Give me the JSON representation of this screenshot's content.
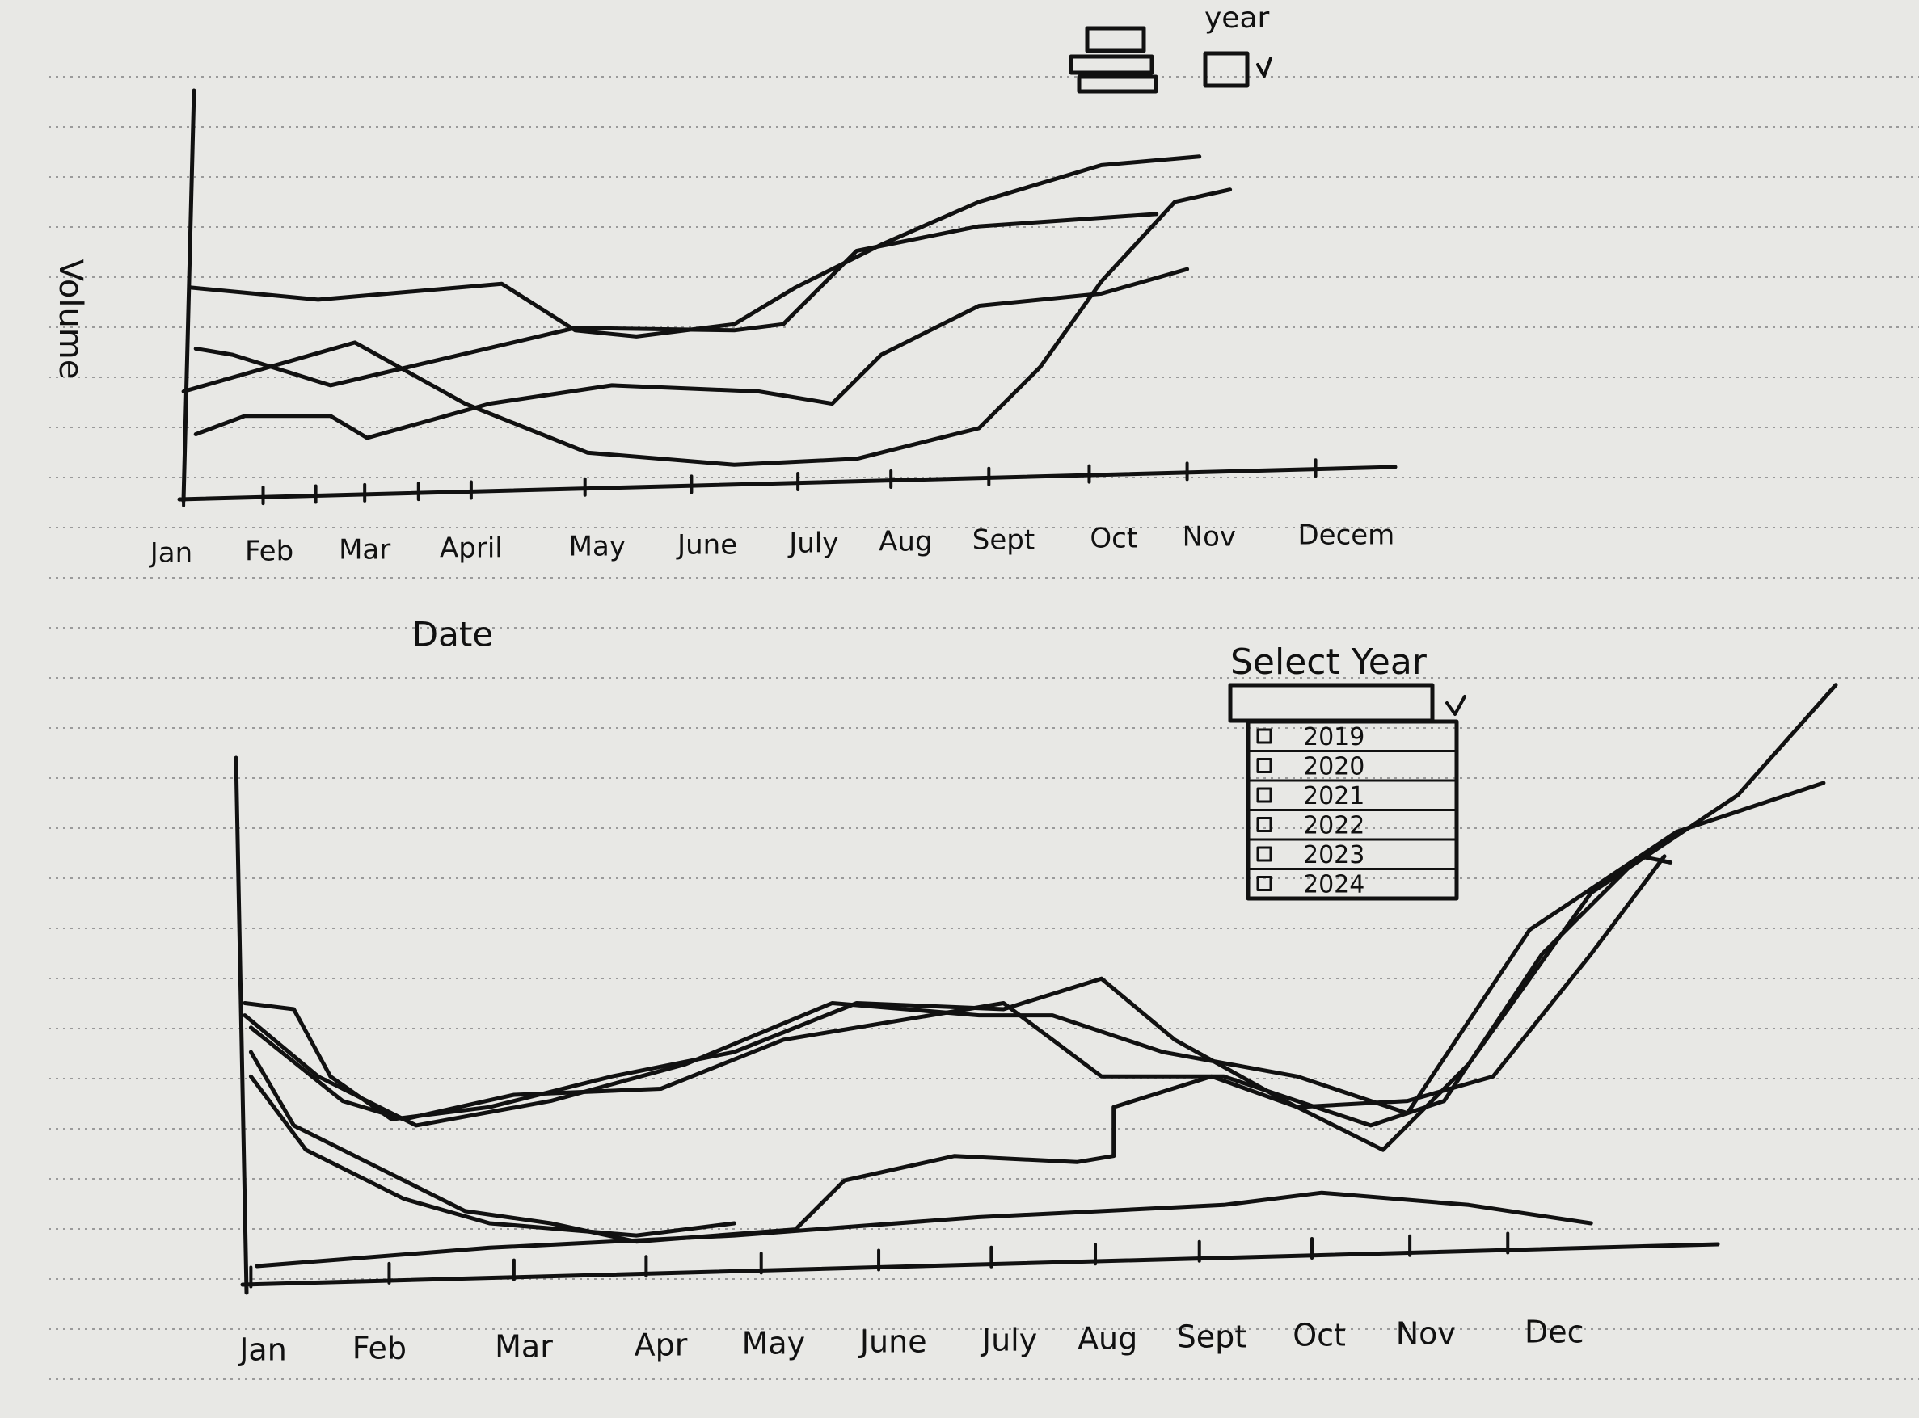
{
  "top_chart": {
    "filter_label": "year",
    "y_label": "Volume",
    "x_label": "Date",
    "months": [
      "Jan",
      "Feb",
      "Mar",
      "April",
      "May",
      "June",
      "July",
      "Aug",
      "Sept",
      "Oct",
      "Nov",
      "Decem"
    ]
  },
  "bottom_chart": {
    "select_label": "Select Year",
    "options": [
      "2019",
      "2020",
      "2021",
      "2022",
      "2023",
      "2024"
    ],
    "months": [
      "Jan",
      "Feb",
      "Mar",
      "Apr",
      "May",
      "June",
      "July",
      "Aug",
      "Sept",
      "Oct",
      "Nov",
      "Dec"
    ]
  }
}
